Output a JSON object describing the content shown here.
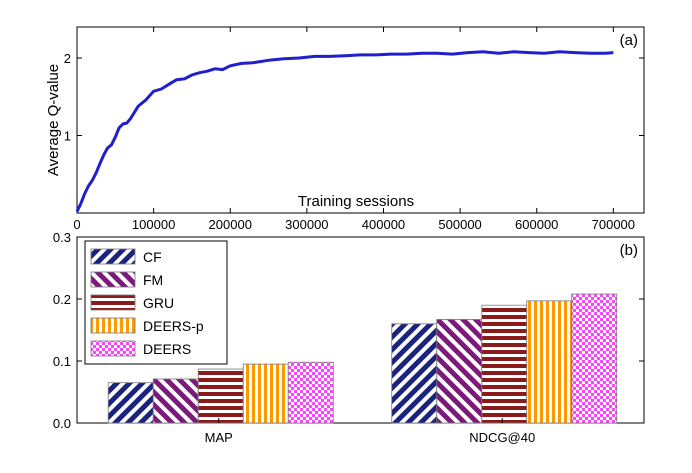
{
  "chart_data": [
    {
      "type": "line",
      "panel_label": "(a)",
      "title": "",
      "xlabel": "Training sessions",
      "ylabel": "Average Q-value",
      "xlim": [
        0,
        740000
      ],
      "ylim": [
        0,
        2.4
      ],
      "x_ticks": [
        0,
        100000,
        200000,
        300000,
        400000,
        500000,
        600000,
        700000
      ],
      "x_tick_labels": [
        "0",
        "100000",
        "200000",
        "300000",
        "400000",
        "500000",
        "600000",
        "700000"
      ],
      "y_ticks": [
        1,
        2
      ],
      "y_tick_labels": [
        "1",
        "2"
      ],
      "grid": false,
      "series": [
        {
          "color": "#1f1fd0",
          "x": [
            0,
            5000,
            10000,
            15000,
            20000,
            25000,
            30000,
            35000,
            40000,
            45000,
            50000,
            55000,
            60000,
            65000,
            70000,
            75000,
            80000,
            90000,
            100000,
            110000,
            120000,
            130000,
            140000,
            150000,
            160000,
            170000,
            180000,
            190000,
            200000,
            215000,
            230000,
            250000,
            270000,
            290000,
            310000,
            330000,
            350000,
            370000,
            390000,
            410000,
            430000,
            450000,
            470000,
            490000,
            510000,
            530000,
            550000,
            570000,
            590000,
            610000,
            630000,
            650000,
            670000,
            690000,
            700000
          ],
          "y": [
            0.02,
            0.12,
            0.25,
            0.35,
            0.42,
            0.52,
            0.64,
            0.75,
            0.84,
            0.88,
            0.98,
            1.1,
            1.15,
            1.16,
            1.22,
            1.3,
            1.38,
            1.46,
            1.57,
            1.6,
            1.66,
            1.72,
            1.73,
            1.78,
            1.81,
            1.83,
            1.86,
            1.85,
            1.9,
            1.93,
            1.94,
            1.97,
            1.99,
            2.0,
            2.02,
            2.02,
            2.03,
            2.04,
            2.04,
            2.05,
            2.05,
            2.06,
            2.06,
            2.05,
            2.07,
            2.08,
            2.06,
            2.08,
            2.07,
            2.06,
            2.08,
            2.07,
            2.06,
            2.06,
            2.07
          ]
        }
      ]
    },
    {
      "type": "bar",
      "panel_label": "(b)",
      "title": "",
      "xlabel": "",
      "ylabel": "",
      "categories": [
        "MAP",
        "NDCG@40"
      ],
      "ylim": [
        0,
        0.3
      ],
      "y_ticks": [
        0.0,
        0.1,
        0.2,
        0.3
      ],
      "y_tick_labels": [
        "0.0",
        "0.1",
        "0.2",
        "0.3"
      ],
      "legend_position": "top-left",
      "grid": false,
      "series": [
        {
          "name": "CF",
          "values": [
            0.065,
            0.16
          ],
          "color": "#1a237e",
          "pattern": "diagonal-stripes-up"
        },
        {
          "name": "FM",
          "values": [
            0.071,
            0.167
          ],
          "color": "#7b1a7b",
          "pattern": "diagonal-stripes-down"
        },
        {
          "name": "GRU",
          "values": [
            0.087,
            0.19
          ],
          "color": "#8b1a1a",
          "pattern": "horizontal-stripes"
        },
        {
          "name": "DEERS-p",
          "values": [
            0.095,
            0.197
          ],
          "color": "#ff9900",
          "pattern": "vertical-stripes"
        },
        {
          "name": "DEERS",
          "values": [
            0.098,
            0.208
          ],
          "color": "#ff44ff",
          "pattern": "checker"
        }
      ]
    }
  ]
}
